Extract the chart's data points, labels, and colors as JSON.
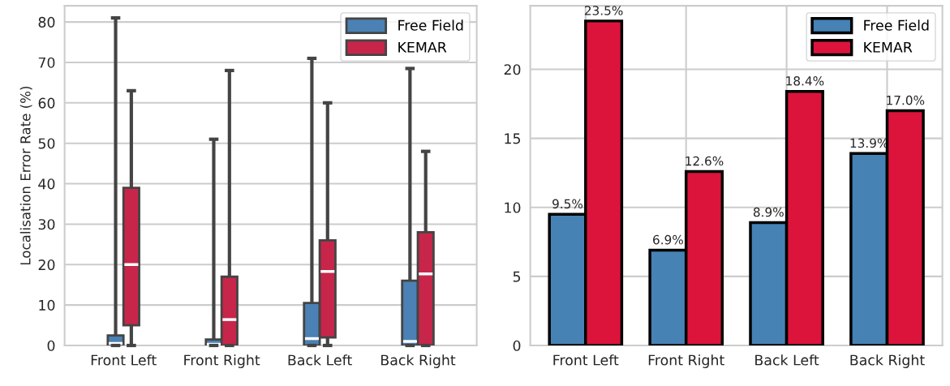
{
  "chart_data": [
    {
      "type": "box",
      "ylabel": "Localisation Error Rate (%)",
      "categories": [
        "Front Left",
        "Front Right",
        "Back Left",
        "Back Right"
      ],
      "ylim": [
        0,
        84
      ],
      "yticks": [
        0,
        10,
        20,
        30,
        40,
        50,
        60,
        70,
        80
      ],
      "grid": "y",
      "legend": "top right",
      "series": [
        {
          "name": "Free Field",
          "color": "#4b81b4",
          "boxes": [
            {
              "low": 0,
              "q1": 0,
              "median": 0.5,
              "q3": 2.5,
              "high": 81
            },
            {
              "low": 0,
              "q1": 0,
              "median": 0.3,
              "q3": 1.5,
              "high": 51
            },
            {
              "low": 0,
              "q1": 0,
              "median": 1.7,
              "q3": 10.5,
              "high": 71
            },
            {
              "low": 0,
              "q1": 0,
              "median": 1,
              "q3": 16,
              "high": 68.5
            }
          ]
        },
        {
          "name": "KEMAR",
          "color": "#c8254a",
          "boxes": [
            {
              "low": 0,
              "q1": 5,
              "median": 20,
              "q3": 39,
              "high": 63
            },
            {
              "low": 0,
              "q1": 0,
              "median": 6.4,
              "q3": 17,
              "high": 68
            },
            {
              "low": 0,
              "q1": 2,
              "median": 18.3,
              "q3": 26,
              "high": 60
            },
            {
              "low": 0,
              "q1": 0,
              "median": 17.7,
              "q3": 28,
              "high": 48
            }
          ]
        }
      ]
    },
    {
      "type": "bar",
      "categories": [
        "Front Left",
        "Front Right",
        "Back Left",
        "Back Right"
      ],
      "ylim": [
        0,
        24.6
      ],
      "yticks": [
        0,
        5,
        10,
        15,
        20
      ],
      "grid": true,
      "legend": "top right",
      "series": [
        {
          "name": "Free Field",
          "color": "#4682b4",
          "values": [
            9.5,
            6.9,
            8.9,
            13.9
          ],
          "value_labels": [
            "9.5%",
            "6.9%",
            "8.9%",
            "13.9%"
          ]
        },
        {
          "name": "KEMAR",
          "color": "#dc143c",
          "values": [
            23.5,
            12.6,
            18.4,
            17.0
          ],
          "value_labels": [
            "23.5%",
            "12.6%",
            "18.4%",
            "17.0%"
          ]
        }
      ]
    }
  ]
}
